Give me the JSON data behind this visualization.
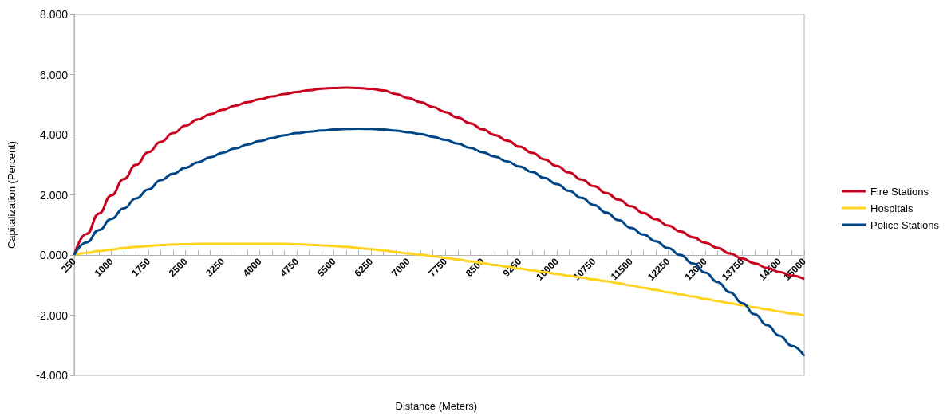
{
  "chart_data": {
    "type": "line",
    "xlabel": "Distance (Meters)",
    "ylabel": "Capitalization (Percent)",
    "categories": [
      "250",
      null,
      null,
      "1000",
      null,
      null,
      "1750",
      null,
      null,
      "2500",
      null,
      null,
      "3250",
      null,
      null,
      "4000",
      null,
      null,
      "4750",
      null,
      null,
      "5500",
      null,
      null,
      "6250",
      null,
      null,
      "7000",
      null,
      null,
      "7750",
      null,
      null,
      "8500",
      null,
      null,
      "9250",
      null,
      null,
      "10000",
      null,
      null,
      "10750",
      null,
      null,
      "11500",
      null,
      null,
      "12250",
      null,
      null,
      "13000",
      null,
      null,
      "13750",
      null,
      null,
      "14500",
      null,
      "15000"
    ],
    "series": [
      {
        "name": "Fire Stations",
        "color": "#c9001e",
        "values": [
          0,
          0.7,
          1.38,
          1.98,
          2.52,
          3.0,
          3.42,
          3.76,
          4.05,
          4.3,
          4.51,
          4.68,
          4.83,
          4.96,
          5.08,
          5.18,
          5.27,
          5.35,
          5.42,
          5.48,
          5.53,
          5.55,
          5.56,
          5.55,
          5.52,
          5.47,
          5.35,
          5.22,
          5.08,
          4.92,
          4.75,
          4.57,
          4.38,
          4.18,
          3.99,
          3.8,
          3.6,
          3.4,
          3.18,
          2.96,
          2.74,
          2.51,
          2.29,
          2.06,
          1.84,
          1.62,
          1.4,
          1.19,
          0.98,
          0.78,
          0.59,
          0.41,
          0.24,
          0.05,
          -0.12,
          -0.28,
          -0.43,
          -0.56,
          -0.69,
          -0.8
        ]
      },
      {
        "name": "Hospitals",
        "color": "#ffd320",
        "values": [
          0,
          0.07,
          0.13,
          0.18,
          0.23,
          0.27,
          0.3,
          0.33,
          0.35,
          0.36,
          0.37,
          0.37,
          0.37,
          0.37,
          0.37,
          0.37,
          0.37,
          0.37,
          0.36,
          0.34,
          0.32,
          0.3,
          0.27,
          0.23,
          0.19,
          0.15,
          0.1,
          0.05,
          0.01,
          -0.04,
          -0.09,
          -0.15,
          -0.21,
          -0.27,
          -0.33,
          -0.39,
          -0.45,
          -0.51,
          -0.57,
          -0.63,
          -0.69,
          -0.75,
          -0.81,
          -0.87,
          -0.94,
          -1.01,
          -1.09,
          -1.16,
          -1.24,
          -1.31,
          -1.38,
          -1.46,
          -1.53,
          -1.6,
          -1.67,
          -1.74,
          -1.81,
          -1.88,
          -1.95,
          -2.01
        ]
      },
      {
        "name": "Police Stations",
        "color": "#004586",
        "values": [
          0,
          0.42,
          0.83,
          1.2,
          1.55,
          1.88,
          2.18,
          2.49,
          2.7,
          2.9,
          3.08,
          3.25,
          3.4,
          3.54,
          3.67,
          3.79,
          3.89,
          3.98,
          4.05,
          4.1,
          4.14,
          4.17,
          4.19,
          4.2,
          4.19,
          4.17,
          4.13,
          4.08,
          4.02,
          3.93,
          3.83,
          3.7,
          3.56,
          3.42,
          3.27,
          3.11,
          2.94,
          2.76,
          2.56,
          2.36,
          2.13,
          1.9,
          1.66,
          1.41,
          1.16,
          0.9,
          0.68,
          0.46,
          0.23,
          0.0,
          -0.28,
          -0.58,
          -0.9,
          -1.24,
          -1.6,
          -1.97,
          -2.33,
          -2.68,
          -3.02,
          -3.36
        ]
      }
    ],
    "ylim": [
      -4,
      8
    ],
    "yticks": [
      {
        "value": -4,
        "label": "-4.000"
      },
      {
        "value": -2,
        "label": "-2.000"
      },
      {
        "value": 0,
        "label": "0.000"
      },
      {
        "value": 2,
        "label": "2.000"
      },
      {
        "value": 4,
        "label": "4.000"
      },
      {
        "value": 6,
        "label": "6.000"
      },
      {
        "value": 8,
        "label": "8.000"
      }
    ],
    "legend": "right"
  }
}
